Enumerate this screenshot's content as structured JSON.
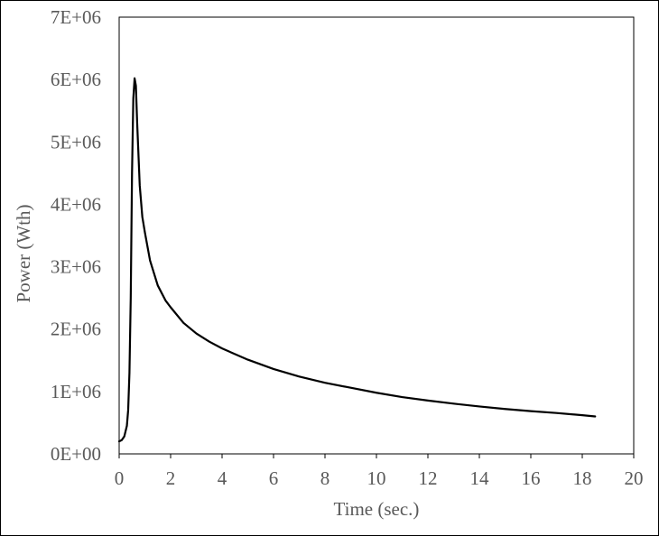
{
  "chart_data": {
    "type": "line",
    "title": "",
    "xlabel": "Time (sec.)",
    "ylabel": "Power (Wth)",
    "xlim": [
      0,
      20
    ],
    "ylim": [
      0,
      7000000
    ],
    "x_ticks": [
      0,
      2,
      4,
      6,
      8,
      10,
      12,
      14,
      16,
      18,
      20
    ],
    "x_tick_labels": [
      "0",
      "2",
      "4",
      "6",
      "8",
      "10",
      "12",
      "14",
      "16",
      "18",
      "20"
    ],
    "y_ticks": [
      0,
      1000000,
      2000000,
      3000000,
      4000000,
      5000000,
      6000000,
      7000000
    ],
    "y_tick_labels": [
      "0E+00",
      "1E+06",
      "2E+06",
      "3E+06",
      "4E+06",
      "5E+06",
      "6E+06",
      "7E+06"
    ],
    "grid": false,
    "legend": "none",
    "colors": {
      "line": "#000000",
      "text": "#595959",
      "axis": "#000000"
    },
    "series": [
      {
        "x": [
          0,
          0.1,
          0.2,
          0.3,
          0.35,
          0.4,
          0.45,
          0.5,
          0.55,
          0.6,
          0.65,
          0.7,
          0.8,
          0.9,
          1.0,
          1.2,
          1.5,
          1.8,
          2.0,
          2.5,
          3.0,
          3.5,
          4.0,
          5.0,
          6.0,
          7.0,
          8.0,
          9.0,
          10.0,
          11.0,
          12.0,
          13.0,
          14.0,
          15.0,
          16.0,
          17.0,
          18.0,
          18.5
        ],
        "values": [
          200000,
          220000,
          280000,
          450000,
          700000,
          1300000,
          2500000,
          4500000,
          5700000,
          6020000,
          5900000,
          5300000,
          4300000,
          3800000,
          3550000,
          3100000,
          2700000,
          2460000,
          2350000,
          2100000,
          1930000,
          1800000,
          1690000,
          1510000,
          1360000,
          1240000,
          1140000,
          1060000,
          980000,
          910000,
          855000,
          805000,
          760000,
          720000,
          685000,
          655000,
          620000,
          600000
        ]
      }
    ]
  }
}
